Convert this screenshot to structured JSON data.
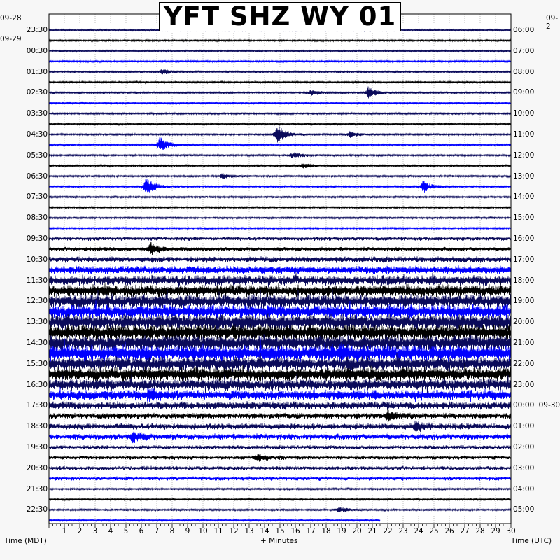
{
  "title": "YFT SHZ WY 01",
  "dates": {
    "left_top": "09-28",
    "left_second": "09-29",
    "right_top": "09-2",
    "right_midnight": "09-30"
  },
  "left_time_labels": [
    "23:30",
    "00:30",
    "01:30",
    "02:30",
    "03:30",
    "04:30",
    "05:30",
    "06:30",
    "07:30",
    "08:30",
    "09:30",
    "10:30",
    "11:30",
    "12:30",
    "13:30",
    "14:30",
    "15:30",
    "16:30",
    "17:30",
    "18:30",
    "19:30",
    "20:30",
    "21:30",
    "22:30"
  ],
  "right_time_labels": [
    "06:00",
    "07:00",
    "08:00",
    "09:00",
    "10:00",
    "11:00",
    "12:00",
    "13:00",
    "14:00",
    "15:00",
    "16:00",
    "17:00",
    "18:00",
    "19:00",
    "20:00",
    "21:00",
    "22:00",
    "23:00",
    "00:00",
    "01:00",
    "02:00",
    "03:00",
    "04:00",
    "05:00"
  ],
  "x_tick_labels": [
    "1",
    "2",
    "3",
    "4",
    "5",
    "6",
    "7",
    "8",
    "9",
    "10",
    "11",
    "12",
    "13",
    "14",
    "15",
    "16",
    "17",
    "18",
    "19",
    "20",
    "21",
    "22",
    "23",
    "24",
    "25",
    "26",
    "27",
    "28",
    "29",
    "30"
  ],
  "axis_titles": {
    "left": "Time (MDT)",
    "center": "+ Minutes",
    "right": "Time (UTC)"
  },
  "colors": {
    "trace_dark": "#0a0a5a",
    "trace_black": "#000000",
    "trace_blue": "#0000ff",
    "grid": "#9a9a9a",
    "background": "#ffffff"
  },
  "chart_data": {
    "type": "seismogram-helicorder",
    "title": "YFT SHZ WY 01",
    "xlabel": "+ Minutes",
    "ylabel_left": "Time (MDT)",
    "ylabel_right": "Time (UTC)",
    "x_range": [
      0,
      30
    ],
    "rows": 48,
    "minutes_per_row": 30,
    "last_row_fill_minutes": 21.5,
    "color_cycle": [
      "trace_dark",
      "trace_black",
      "trace_dark",
      "trace_blue"
    ],
    "row_amplitude_levels": [
      1,
      1,
      1,
      1,
      1,
      1,
      1,
      1,
      1,
      1,
      1,
      1,
      1,
      1,
      1,
      1,
      1,
      1,
      1,
      1,
      2,
      2,
      3,
      4,
      5,
      6,
      7,
      7,
      8,
      8,
      8,
      8,
      7,
      7,
      6,
      5,
      4,
      3,
      3,
      3,
      2,
      2,
      2,
      2,
      1,
      1,
      1,
      1
    ],
    "events": [
      {
        "row": 4,
        "minute": 7.3,
        "amplitude": 2
      },
      {
        "row": 6,
        "minute": 20.7,
        "amplitude": 4
      },
      {
        "row": 6,
        "minute": 17.0,
        "amplitude": 2
      },
      {
        "row": 10,
        "minute": 14.8,
        "amplitude": 7
      },
      {
        "row": 10,
        "minute": 19.5,
        "amplitude": 2
      },
      {
        "row": 11,
        "minute": 7.2,
        "amplitude": 5
      },
      {
        "row": 12,
        "minute": 15.8,
        "amplitude": 2
      },
      {
        "row": 13,
        "minute": 16.5,
        "amplitude": 2
      },
      {
        "row": 14,
        "minute": 11.2,
        "amplitude": 2
      },
      {
        "row": 15,
        "minute": 6.3,
        "amplitude": 6
      },
      {
        "row": 15,
        "minute": 24.3,
        "amplitude": 4
      },
      {
        "row": 21,
        "minute": 6.6,
        "amplitude": 4
      },
      {
        "row": 31,
        "minute": 18.9,
        "amplitude": 4
      },
      {
        "row": 35,
        "minute": 6.5,
        "amplitude": 3
      },
      {
        "row": 37,
        "minute": 22.0,
        "amplitude": 3
      },
      {
        "row": 38,
        "minute": 23.8,
        "amplitude": 3
      },
      {
        "row": 39,
        "minute": 5.4,
        "amplitude": 3
      },
      {
        "row": 41,
        "minute": 13.5,
        "amplitude": 2
      },
      {
        "row": 46,
        "minute": 18.8,
        "amplitude": 2
      }
    ]
  }
}
